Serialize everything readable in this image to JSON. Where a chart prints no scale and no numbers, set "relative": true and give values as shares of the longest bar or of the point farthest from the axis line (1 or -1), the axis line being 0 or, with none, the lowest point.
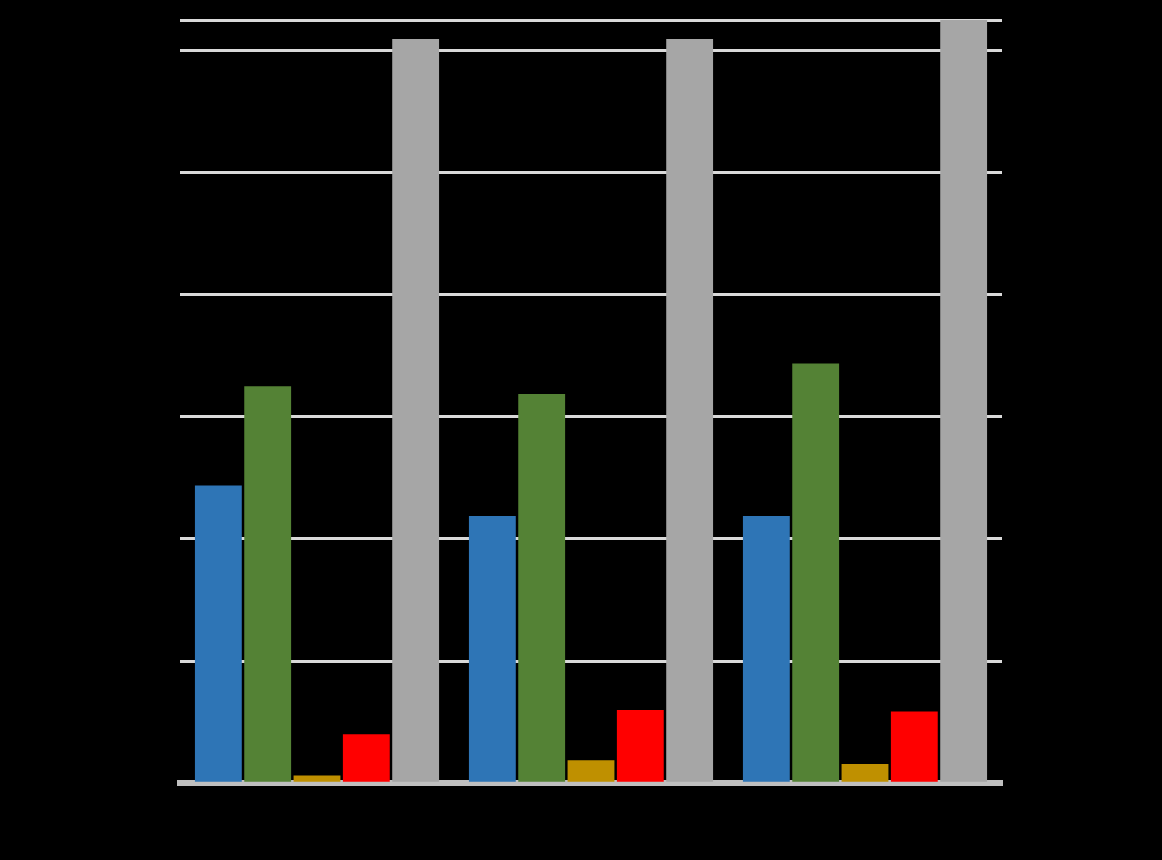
{
  "chart_data": {
    "type": "bar",
    "relative": true,
    "grid": "y",
    "legend": false,
    "categories": [
      null,
      null,
      null
    ],
    "series": [
      {
        "color": "#2e75b6",
        "values": [
          0.39,
          0.35,
          0.35
        ]
      },
      {
        "color": "#548235",
        "values": [
          0.52,
          0.51,
          0.55
        ]
      },
      {
        "color": "#bf9000",
        "values": [
          0.01,
          0.03,
          0.025
        ]
      },
      {
        "color": "#ff0000",
        "values": [
          0.064,
          0.096,
          0.094
        ]
      },
      {
        "color": "#a6a6a6",
        "values": [
          0.975,
          0.975,
          1
        ]
      }
    ]
  }
}
